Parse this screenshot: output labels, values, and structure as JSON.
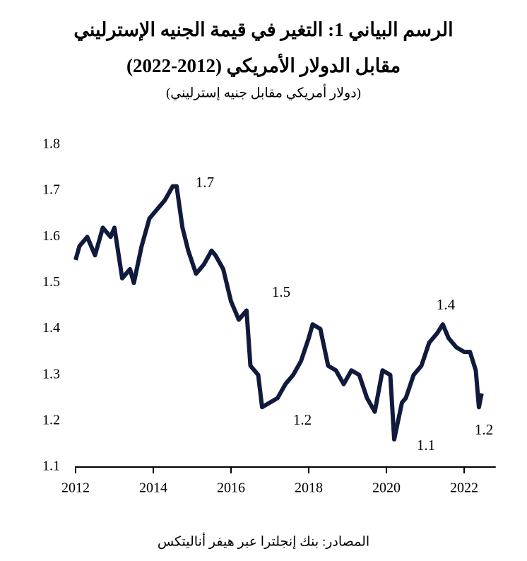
{
  "chart_data": {
    "type": "line",
    "title": [
      "الرسم البياني 1: التغير في قيمة الجنيه الإسترليني",
      "مقابل الدولار الأمريكي (2012-2022)"
    ],
    "subtitle": "(دولار أمريكي مقابل جنيه إسترليني)",
    "source": "المصادر: بنك إنجلترا عبر هيفر أناليتكس",
    "annotations": [
      "1.7",
      "1.5",
      "1.2",
      "1.4",
      "1.1",
      "1.2"
    ],
    "x": [
      2012.0,
      2012.1,
      2012.3,
      2012.5,
      2012.7,
      2012.9,
      2013.0,
      2013.2,
      2013.4,
      2013.5,
      2013.7,
      2013.9,
      2014.1,
      2014.3,
      2014.5,
      2014.6,
      2014.75,
      2014.9,
      2015.1,
      2015.3,
      2015.5,
      2015.6,
      2015.8,
      2016.0,
      2016.2,
      2016.4,
      2016.5,
      2016.7,
      2016.8,
      2017.0,
      2017.2,
      2017.4,
      2017.6,
      2017.8,
      2018.0,
      2018.1,
      2018.3,
      2018.5,
      2018.7,
      2018.9,
      2019.1,
      2019.3,
      2019.5,
      2019.7,
      2019.9,
      2020.1,
      2020.2,
      2020.4,
      2020.5,
      2020.7,
      2020.9,
      2021.1,
      2021.3,
      2021.45,
      2021.6,
      2021.8,
      2022.0,
      2022.15,
      2022.3,
      2022.38,
      2022.45
    ],
    "series": [
      {
        "color": "#0f1a3c",
        "values": [
          1.55,
          1.58,
          1.6,
          1.56,
          1.62,
          1.6,
          1.62,
          1.51,
          1.53,
          1.5,
          1.58,
          1.64,
          1.66,
          1.68,
          1.71,
          1.71,
          1.62,
          1.57,
          1.52,
          1.54,
          1.57,
          1.56,
          1.53,
          1.46,
          1.42,
          1.44,
          1.32,
          1.3,
          1.23,
          1.24,
          1.25,
          1.28,
          1.3,
          1.33,
          1.38,
          1.41,
          1.4,
          1.32,
          1.31,
          1.28,
          1.31,
          1.3,
          1.25,
          1.22,
          1.31,
          1.3,
          1.16,
          1.24,
          1.25,
          1.3,
          1.32,
          1.37,
          1.39,
          1.41,
          1.38,
          1.36,
          1.35,
          1.35,
          1.31,
          1.23,
          1.26
        ]
      }
    ],
    "xlim": [
      2012,
      2022.45
    ],
    "xticks": [
      2012,
      2014,
      2016,
      2018,
      2020,
      2022
    ],
    "ylim": [
      1.1,
      1.8
    ],
    "yticks": [
      1.1,
      1.2,
      1.3,
      1.4,
      1.5,
      1.6,
      1.7,
      1.8
    ]
  }
}
